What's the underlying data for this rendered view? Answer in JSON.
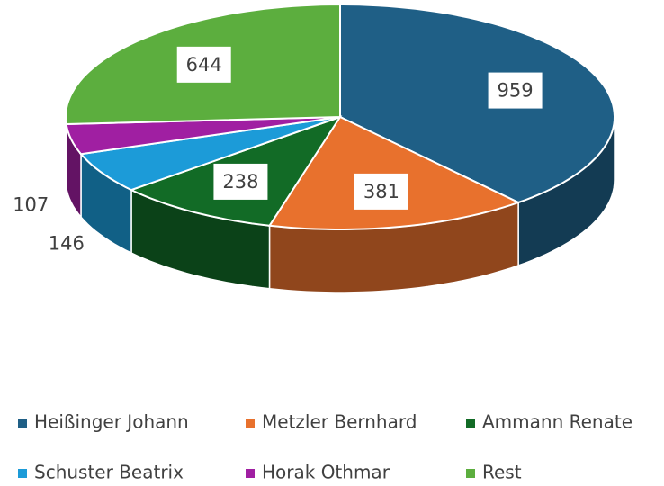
{
  "chart_data": {
    "type": "pie",
    "three_d": true,
    "legend": "bottom",
    "categories": [
      "Heißinger Johann",
      "Metzler Bernhard",
      "Ammann Renate",
      "Schuster Beatrix",
      "Horak Othmar",
      "Rest"
    ],
    "values": [
      959,
      381,
      238,
      146,
      107,
      644
    ],
    "colors": [
      "#1f5f86",
      "#e8712d",
      "#126b26",
      "#1c9bd8",
      "#a01fa2",
      "#5cae3e"
    ]
  }
}
